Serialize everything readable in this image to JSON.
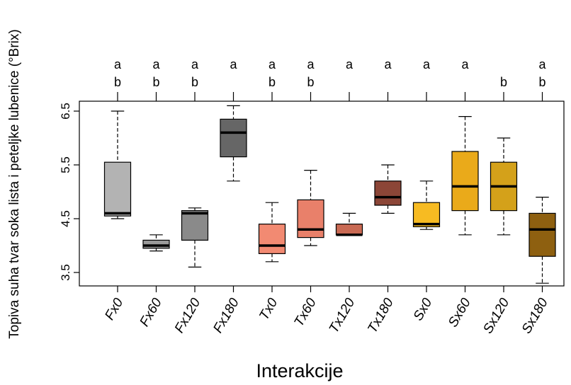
{
  "chart_data": {
    "type": "boxplot",
    "xlabel": "Interakcije",
    "ylabel": "Topiva suha tvar soka lista i peteljke lubenice (°Brix)",
    "ylim": [
      3.2,
      6.75
    ],
    "yticks": [
      "3.5",
      "4.5",
      "5.5",
      "6.5"
    ],
    "categories": [
      "Fx0",
      "Fx60",
      "Fx120",
      "Fx180",
      "Tx0",
      "Tx60",
      "Tx120",
      "Tx180",
      "Sx0",
      "Sx60",
      "Sx120",
      "Sx180"
    ],
    "boxes": [
      {
        "category": "Fx0",
        "min": 4.5,
        "q1": 4.55,
        "median": 4.6,
        "q3": 5.55,
        "max": 6.5,
        "color": "#b3b3b3",
        "letters": [
          "a",
          "b"
        ]
      },
      {
        "category": "Fx60",
        "min": 3.9,
        "q1": 3.95,
        "median": 4.0,
        "q3": 4.1,
        "max": 4.2,
        "color": "#9a9a9a",
        "letters": [
          "a",
          "b"
        ]
      },
      {
        "category": "Fx120",
        "min": 3.6,
        "q1": 4.1,
        "median": 4.6,
        "q3": 4.65,
        "max": 4.7,
        "color": "#8a8a8a",
        "letters": [
          "a",
          "b"
        ]
      },
      {
        "category": "Fx180",
        "min": 5.2,
        "q1": 5.65,
        "median": 6.1,
        "q3": 6.35,
        "max": 6.6,
        "color": "#666666",
        "letters": [
          "a"
        ]
      },
      {
        "category": "Tx0",
        "min": 3.7,
        "q1": 3.85,
        "median": 4.0,
        "q3": 4.4,
        "max": 4.8,
        "color": "#f28a72",
        "letters": [
          "a",
          "b"
        ]
      },
      {
        "category": "Tx60",
        "min": 4.0,
        "q1": 4.15,
        "median": 4.3,
        "q3": 4.85,
        "max": 5.4,
        "color": "#e9806a",
        "letters": [
          "a",
          "b"
        ]
      },
      {
        "category": "Tx120",
        "min": 4.2,
        "q1": 4.2,
        "median": 4.2,
        "q3": 4.4,
        "max": 4.6,
        "color": "#c96a54",
        "letters": [
          "a"
        ]
      },
      {
        "category": "Tx180",
        "min": 4.6,
        "q1": 4.75,
        "median": 4.9,
        "q3": 5.2,
        "max": 5.5,
        "color": "#8c4637",
        "letters": [
          "a"
        ]
      },
      {
        "category": "Sx0",
        "min": 4.3,
        "q1": 4.35,
        "median": 4.4,
        "q3": 4.8,
        "max": 5.2,
        "color": "#f7bb22",
        "letters": [
          "a"
        ]
      },
      {
        "category": "Sx60",
        "min": 4.2,
        "q1": 4.65,
        "median": 5.1,
        "q3": 5.75,
        "max": 6.4,
        "color": "#eaaa1a",
        "letters": [
          "a"
        ]
      },
      {
        "category": "Sx120",
        "min": 4.2,
        "q1": 4.65,
        "median": 5.1,
        "q3": 5.55,
        "max": 6.0,
        "color": "#d4a11a",
        "letters": [
          "b"
        ]
      },
      {
        "category": "Sx180",
        "min": 3.3,
        "q1": 3.8,
        "median": 4.3,
        "q3": 4.6,
        "max": 4.9,
        "color": "#8e6010",
        "letters": [
          "a",
          "b"
        ]
      }
    ]
  }
}
